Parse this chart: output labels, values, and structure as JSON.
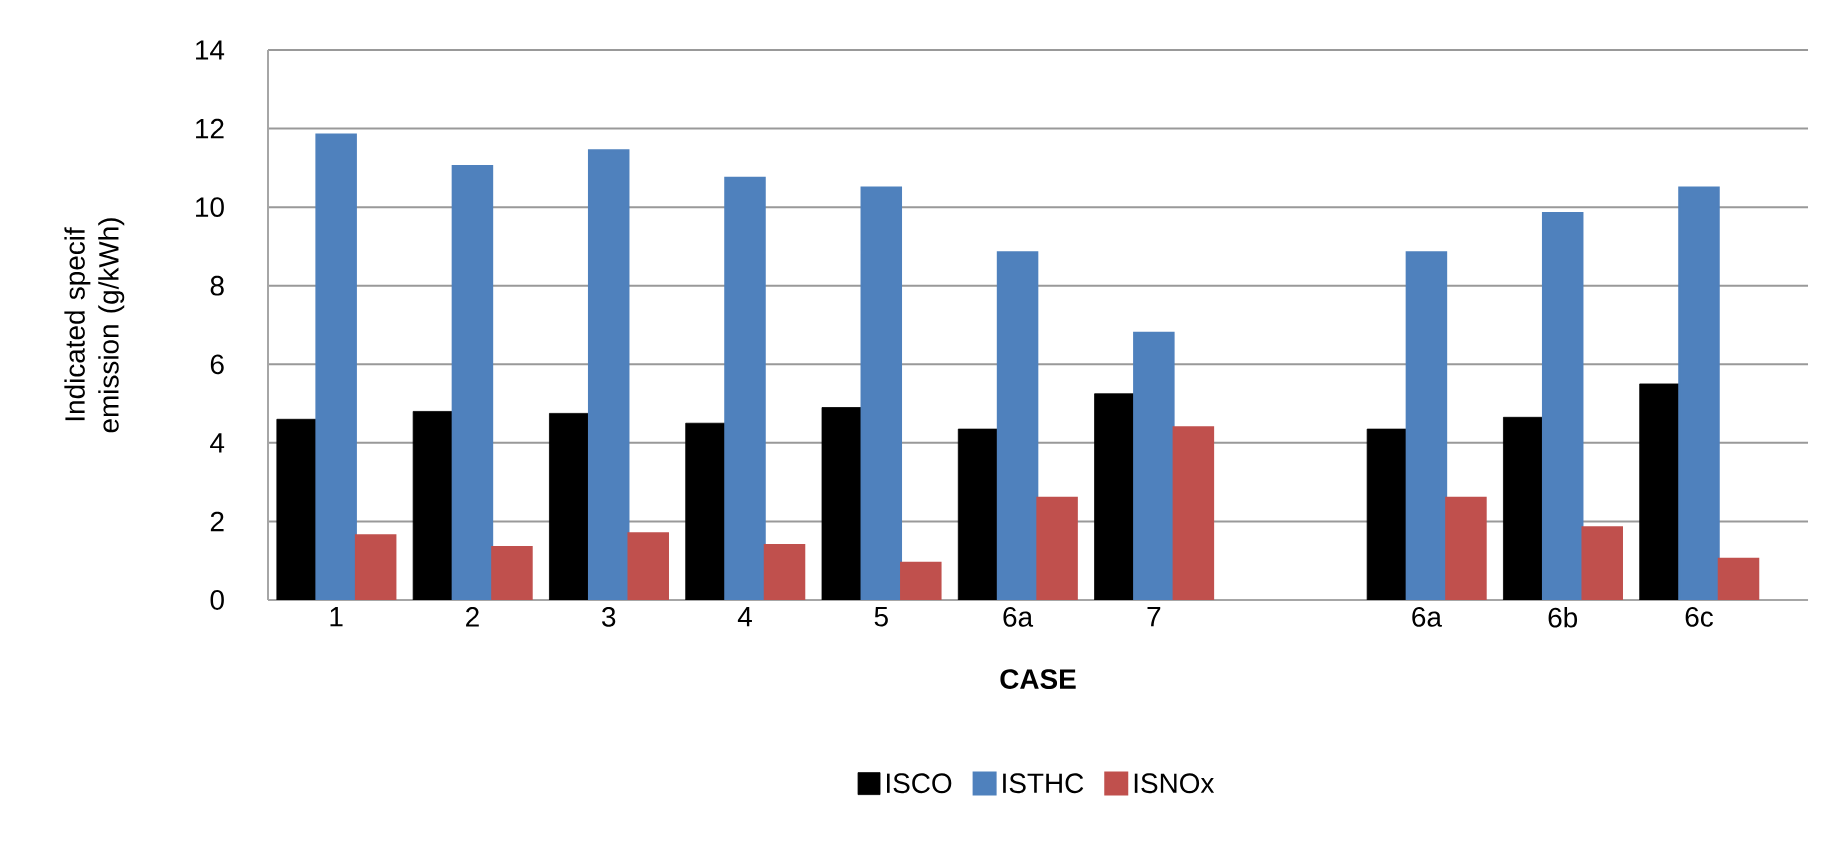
{
  "chart_data": {
    "type": "bar",
    "xlabel": "CASE",
    "ylabel": "Indicated specif emission (g/kWh)",
    "categories": [
      "1",
      "2",
      "3",
      "4",
      "5",
      "6a",
      "7",
      null,
      "6a",
      "6b",
      "6c"
    ],
    "series": [
      {
        "name": "ISCO",
        "color": "#000000",
        "values": [
          4.6,
          4.8,
          4.75,
          4.5,
          4.9,
          4.35,
          5.25,
          null,
          4.35,
          4.65,
          5.5
        ]
      },
      {
        "name": "ISTHC",
        "color": "#4f81bd",
        "values": [
          11.85,
          11.05,
          11.45,
          10.75,
          10.5,
          8.85,
          6.8,
          null,
          8.85,
          9.85,
          10.5
        ]
      },
      {
        "name": "ISNOx",
        "color": "#c0504d",
        "values": [
          1.65,
          1.35,
          1.7,
          1.4,
          0.95,
          2.6,
          4.4,
          null,
          2.6,
          1.85,
          1.05
        ]
      }
    ],
    "ylim": [
      0,
      14
    ],
    "yticks": [
      0,
      2,
      4,
      6,
      8,
      10,
      12,
      14
    ],
    "grid": "y",
    "legend": "bottom"
  }
}
